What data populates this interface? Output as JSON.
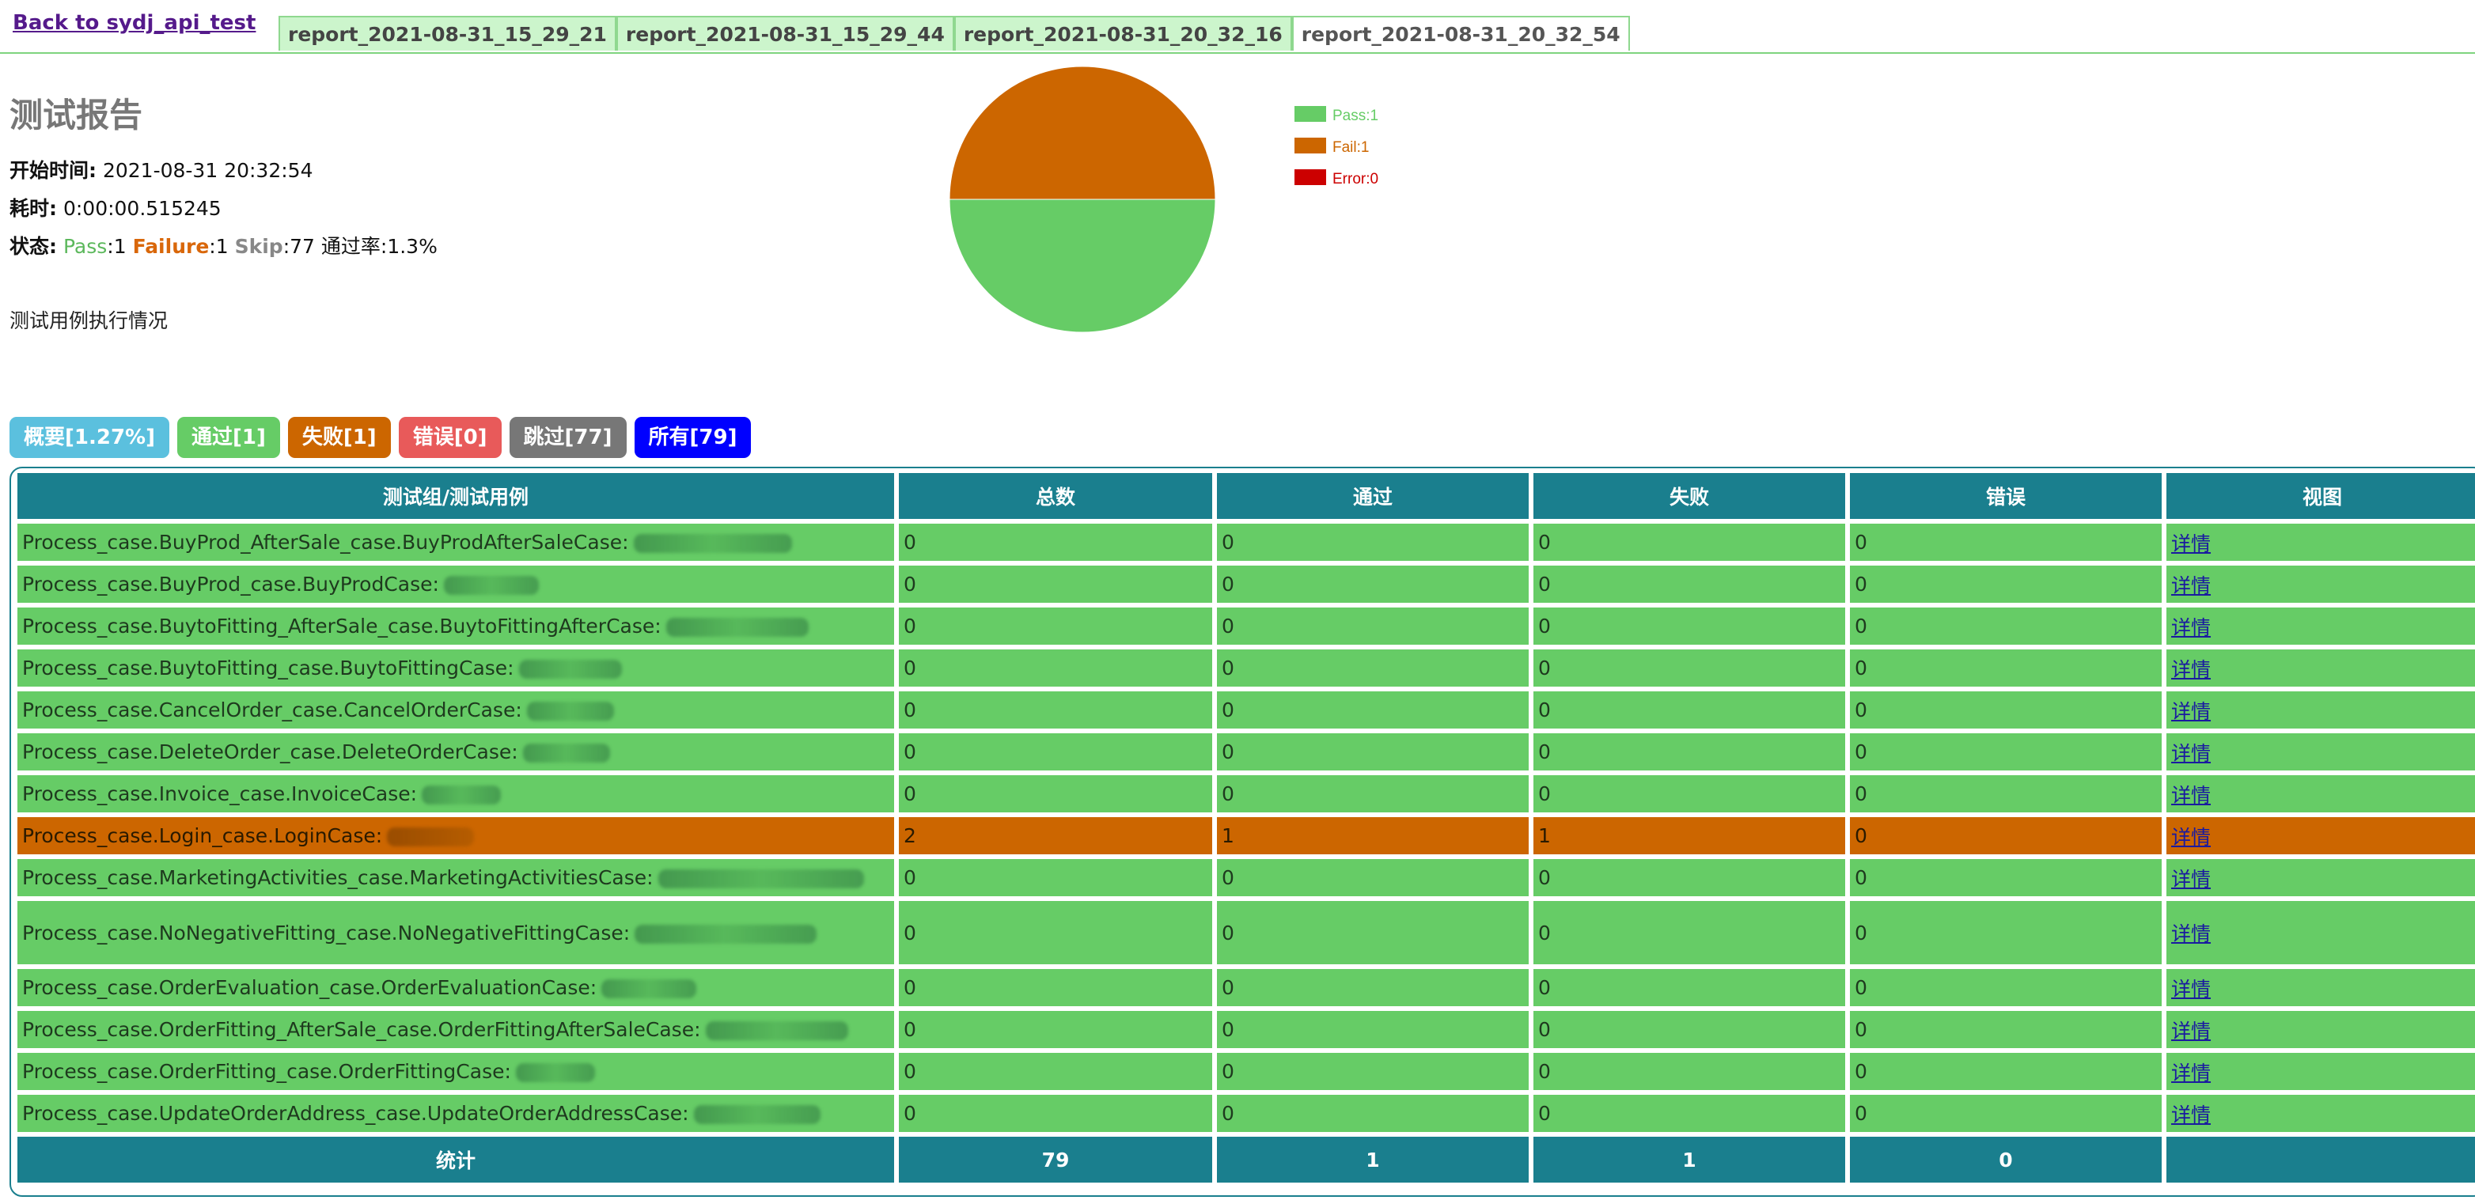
{
  "nav": {
    "back_label": "Back to sydj_api_test",
    "tabs": [
      {
        "label": "report_2021-08-31_15_29_21",
        "active": false
      },
      {
        "label": "report_2021-08-31_15_29_44",
        "active": false
      },
      {
        "label": "report_2021-08-31_20_32_16",
        "active": false
      },
      {
        "label": "report_2021-08-31_20_32_54",
        "active": true
      }
    ]
  },
  "report": {
    "title": "测试报告",
    "start_label": "开始时间:",
    "start_value": "2021-08-31 20:32:54",
    "duration_label": "耗时:",
    "duration_value": "0:00:00.515245",
    "status_label": "状态:",
    "status_pass_label": "Pass",
    "status_pass_value": ":1",
    "status_fail_label": "Failure",
    "status_fail_value": ":1",
    "status_skip_label": "Skip",
    "status_skip_value": ":77",
    "status_rate": "通过率:1.3%",
    "description": "测试用例执行情况"
  },
  "chart_data": {
    "type": "pie",
    "categories": [
      "Pass",
      "Fail",
      "Error"
    ],
    "values": [
      1,
      1,
      0
    ],
    "legend": [
      "Pass:1",
      "Fail:1",
      "Error:0"
    ],
    "colors": [
      "#66cc66",
      "#cc6600",
      "#cc0000"
    ],
    "legend_position": "right"
  },
  "filters": [
    {
      "label": "概要[1.27%]",
      "color": "#5bc0de"
    },
    {
      "label": "通过[1]",
      "color": "#66cc66"
    },
    {
      "label": "失败[1]",
      "color": "#cc6600"
    },
    {
      "label": "错误[0]",
      "color": "#e85a5a"
    },
    {
      "label": "跳过[77]",
      "color": "#777777"
    },
    {
      "label": "所有[79]",
      "color": "#0000ff"
    }
  ],
  "table": {
    "headers": [
      "测试组/测试用例",
      "总数",
      "通过",
      "失败",
      "错误",
      "视图"
    ],
    "detail_label": "详情",
    "rows": [
      {
        "name": "Process_case.BuyProd_AfterSale_case.BuyProdAfterSaleCase:",
        "total": "0",
        "pass": "0",
        "fail": "0",
        "error": "0",
        "status": "ok"
      },
      {
        "name": "Process_case.BuyProd_case.BuyProdCase:",
        "total": "0",
        "pass": "0",
        "fail": "0",
        "error": "0",
        "status": "ok"
      },
      {
        "name": "Process_case.BuytoFitting_AfterSale_case.BuytoFittingAfterCase:",
        "total": "0",
        "pass": "0",
        "fail": "0",
        "error": "0",
        "status": "ok"
      },
      {
        "name": "Process_case.BuytoFitting_case.BuytoFittingCase:",
        "total": "0",
        "pass": "0",
        "fail": "0",
        "error": "0",
        "status": "ok"
      },
      {
        "name": "Process_case.CancelOrder_case.CancelOrderCase:",
        "total": "0",
        "pass": "0",
        "fail": "0",
        "error": "0",
        "status": "ok"
      },
      {
        "name": "Process_case.DeleteOrder_case.DeleteOrderCase:",
        "total": "0",
        "pass": "0",
        "fail": "0",
        "error": "0",
        "status": "ok"
      },
      {
        "name": "Process_case.Invoice_case.InvoiceCase:",
        "total": "0",
        "pass": "0",
        "fail": "0",
        "error": "0",
        "status": "ok"
      },
      {
        "name": "Process_case.Login_case.LoginCase:",
        "total": "2",
        "pass": "1",
        "fail": "1",
        "error": "0",
        "status": "fail"
      },
      {
        "name": "Process_case.MarketingActivities_case.MarketingActivitiesCase:",
        "total": "0",
        "pass": "0",
        "fail": "0",
        "error": "0",
        "status": "ok"
      },
      {
        "name": "Process_case.NoNegativeFitting_case.NoNegativeFittingCase:",
        "total": "0",
        "pass": "0",
        "fail": "0",
        "error": "0",
        "status": "ok"
      },
      {
        "name": "Process_case.OrderEvaluation_case.OrderEvaluationCase:",
        "total": "0",
        "pass": "0",
        "fail": "0",
        "error": "0",
        "status": "ok"
      },
      {
        "name": "Process_case.OrderFitting_AfterSale_case.OrderFittingAfterSaleCase:",
        "total": "0",
        "pass": "0",
        "fail": "0",
        "error": "0",
        "status": "ok"
      },
      {
        "name": "Process_case.OrderFitting_case.OrderFittingCase:",
        "total": "0",
        "pass": "0",
        "fail": "0",
        "error": "0",
        "status": "ok"
      },
      {
        "name": "Process_case.UpdateOrderAddress_case.UpdateOrderAddressCase:",
        "total": "0",
        "pass": "0",
        "fail": "0",
        "error": "0",
        "status": "ok"
      }
    ],
    "totals": {
      "label": "统计",
      "total": "79",
      "pass": "1",
      "fail": "1",
      "error": "0"
    }
  }
}
